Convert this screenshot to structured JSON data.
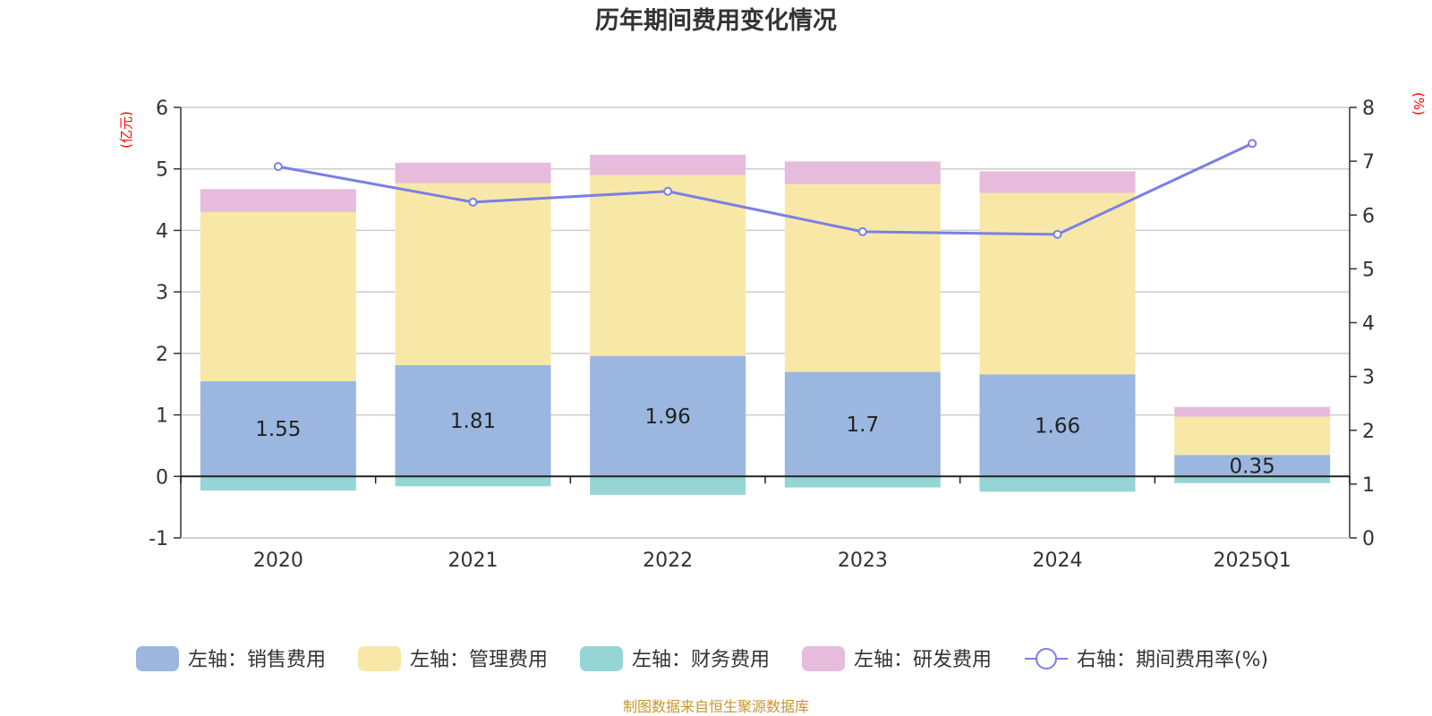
{
  "chart_data": {
    "type": "bar",
    "title": "历年期间费用变化情况",
    "categories": [
      "2020",
      "2021",
      "2022",
      "2023",
      "2024",
      "2025Q1"
    ],
    "left_axis": {
      "unit": "(亿元)",
      "ylim": [
        -1,
        6
      ],
      "ticks": [
        -1,
        0,
        1,
        2,
        3,
        4,
        5,
        6
      ]
    },
    "right_axis": {
      "unit": "(%)",
      "ylim": [
        0,
        8
      ],
      "ticks": [
        0,
        1,
        2,
        3,
        4,
        5,
        6,
        7,
        8
      ]
    },
    "grid": true,
    "legend_position": "bottom",
    "series": [
      {
        "name": "左轴：销售费用",
        "axis": "left",
        "type": "bar",
        "color": "#9bb7e0",
        "values": [
          1.55,
          1.81,
          1.96,
          1.7,
          1.66,
          0.35
        ],
        "labels": [
          "1.55",
          "1.81",
          "1.96",
          "1.7",
          "1.66",
          "0.35"
        ]
      },
      {
        "name": "左轴：管理费用",
        "axis": "left",
        "type": "bar",
        "color": "#f8e8a8",
        "values": [
          2.75,
          2.96,
          2.94,
          3.05,
          2.95,
          0.62
        ]
      },
      {
        "name": "左轴：财务费用",
        "axis": "left",
        "type": "bar",
        "color": "#96d5d5",
        "values": [
          -0.23,
          -0.16,
          -0.3,
          -0.18,
          -0.25,
          -0.11
        ]
      },
      {
        "name": "左轴：研发费用",
        "axis": "left",
        "type": "bar",
        "color": "#e7bbdc",
        "values": [
          0.37,
          0.33,
          0.33,
          0.37,
          0.35,
          0.16
        ]
      },
      {
        "name": "右轴：期间费用率(%)",
        "axis": "right",
        "type": "line",
        "color": "#7b7fe6",
        "values": [
          6.9,
          6.24,
          6.44,
          5.69,
          5.64,
          7.33
        ]
      }
    ],
    "source": "制图数据来自恒生聚源数据库"
  }
}
